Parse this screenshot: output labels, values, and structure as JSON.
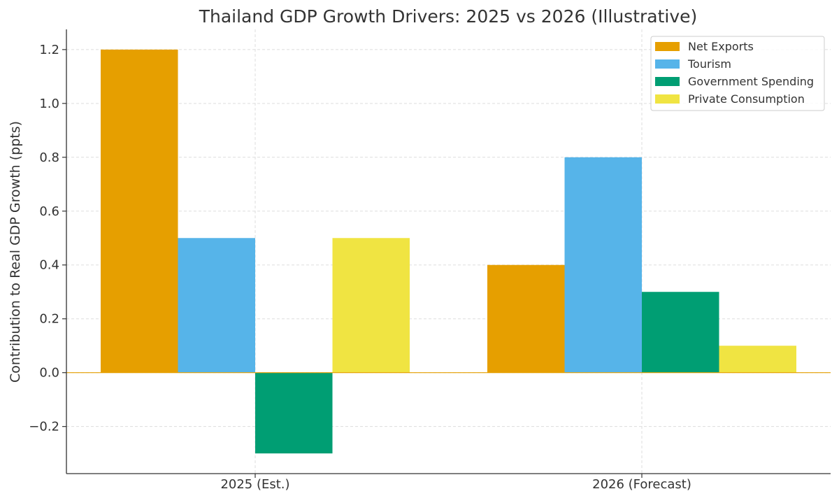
{
  "chart_data": {
    "type": "bar",
    "title": "Thailand GDP Growth Drivers: 2025 vs 2026 (Illustrative)",
    "xlabel": "",
    "ylabel": "Contribution to Real GDP Growth (ppts)",
    "categories": [
      "2025 (Est.)",
      "2026 (Forecast)"
    ],
    "series": [
      {
        "name": "Net Exports",
        "color": "#E69F00",
        "values": [
          1.2,
          0.4
        ]
      },
      {
        "name": "Tourism",
        "color": "#56B4E9",
        "values": [
          0.5,
          0.8
        ]
      },
      {
        "name": "Government Spending",
        "color": "#009E73",
        "values": [
          -0.3,
          0.3
        ]
      },
      {
        "name": "Private Consumption",
        "color": "#F0E442",
        "values": [
          0.5,
          0.1
        ]
      }
    ],
    "ylim": [
      -0.375,
      1.275
    ],
    "yticks": [
      -0.2,
      0.0,
      0.2,
      0.4,
      0.6,
      0.8,
      1.0,
      1.2
    ],
    "ytick_labels": [
      "−0.2",
      "0.0",
      "0.2",
      "0.4",
      "0.6",
      "0.8",
      "1.0",
      "1.2"
    ],
    "grid": true,
    "legend_position": "top-right",
    "zero_line_color": "#E69F00"
  }
}
